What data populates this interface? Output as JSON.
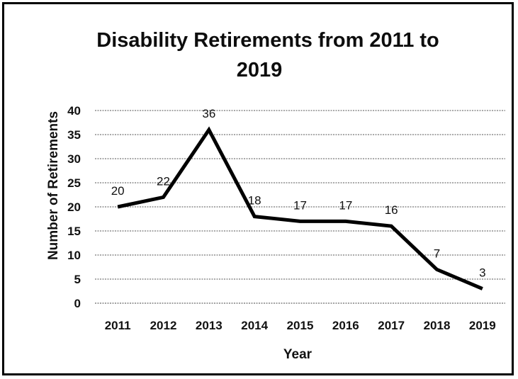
{
  "chart_data": {
    "type": "line",
    "title": "Disability Retirements from 2011 to 2019",
    "title_lines": [
      "Disability Retirements from 2011 to",
      "2019"
    ],
    "xlabel": "Year",
    "ylabel": "Number of Retirements",
    "categories": [
      "2011",
      "2012",
      "2013",
      "2014",
      "2015",
      "2016",
      "2017",
      "2018",
      "2019"
    ],
    "series": [
      {
        "values": [
          20,
          22,
          36,
          18,
          17,
          17,
          16,
          7,
          3
        ]
      }
    ],
    "data_labels": [
      "20",
      "22",
      "36",
      "18",
      "17",
      "17",
      "16",
      "7",
      "3"
    ],
    "yticks": [
      "0",
      "5",
      "10",
      "15",
      "20",
      "25",
      "30",
      "35",
      "40"
    ],
    "ylim": [
      0,
      40
    ],
    "grid": true,
    "legend": "none",
    "line_color": "#000000"
  }
}
